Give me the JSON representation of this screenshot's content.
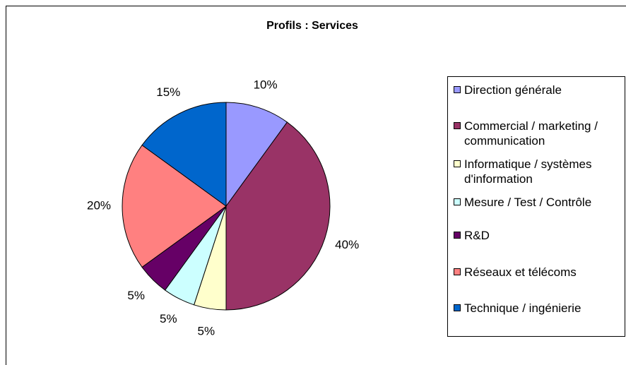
{
  "chart_data": {
    "type": "pie",
    "title": "Profils : Services",
    "categories": [
      "Direction générale",
      "Commercial / marketing / communication",
      "Informatique / systèmes d'information",
      "Mesure / Test / Contrôle",
      "R&D",
      "Réseaux et télécoms",
      "Technique / ingénierie"
    ],
    "values": [
      10,
      40,
      5,
      5,
      5,
      20,
      15
    ],
    "value_labels": [
      "10%",
      "40%",
      "5%",
      "5%",
      "5%",
      "20%",
      "15%"
    ],
    "colors": [
      "#9999ff",
      "#993366",
      "#ffffcc",
      "#ccffff",
      "#660066",
      "#ff8080",
      "#0066cc"
    ],
    "legend": "right"
  }
}
